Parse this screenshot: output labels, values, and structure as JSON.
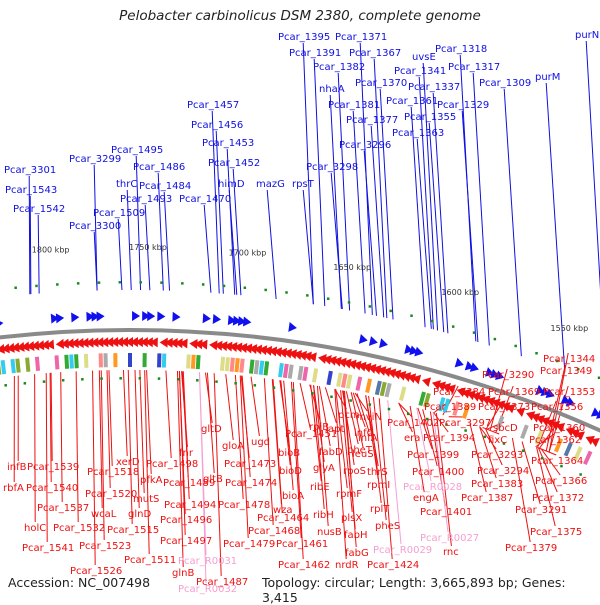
{
  "title": "Pelobacter carbinolicus DSM 2380, complete genome",
  "footer": {
    "accession": "Accession: NC_007498",
    "summary": "Topology: circular; Length: 3,665,893 bp; Genes: 3,415"
  },
  "colors": {
    "forward_label": "#1010e0",
    "reverse_label": "#ee1010",
    "rna_label": "#f4a0d0",
    "backbone": "#888888",
    "gc_tick": "#1a8a1a"
  },
  "scale_ticks": [
    "1550 kbp",
    "1600 kbp",
    "1650 kbp",
    "1700 kbp",
    "1750 kbp",
    "1800 kbp"
  ],
  "forward_genes": [
    "Pcar_1395",
    "Pcar_1371",
    "Pcar_1391",
    "Pcar_1367",
    "uvsE",
    "Pcar_1318",
    "Pcar_1382",
    "Pcar_1341",
    "Pcar_1317",
    "purN",
    "nhaA",
    "Pcar_1370",
    "Pcar_1337",
    "Pcar_1309",
    "purM",
    "Pcar_1381",
    "Pcar_1361",
    "Pcar_1329",
    "Pcar_1377",
    "Pcar_1355",
    "Pcar_1363",
    "Pcar_3296",
    "Pcar_3298",
    "Pcar_1457",
    "Pcar_1456",
    "Pcar_1453",
    "Pcar_1452",
    "himD",
    "mazG",
    "rpsT",
    "Pcar_1495",
    "Pcar_3299",
    "Pcar_1486",
    "thrC",
    "Pcar_1484",
    "Pcar_1493",
    "Pcar_1470",
    "Pcar_1509",
    "Pcar_3300",
    "Pcar_3301",
    "Pcar_1543",
    "Pcar_1542"
  ],
  "reverse_genes": [
    "Pcar_1344",
    "Pcar_1349",
    "Pcar_3290",
    "Pcar_1384",
    "Pcar_1369",
    "Pcar_1353",
    "Pcar_1389",
    "Pcar_1373",
    "Pcar_1356",
    "Pcar_1402",
    "Pcar_3297",
    "sbcD",
    "Pcar_1360",
    "era",
    "Pcar_1394",
    "fixC",
    "Pcar_1362",
    "infA",
    "Pcar_1399",
    "Pcar_3293",
    "Pcar_1364",
    "leuS",
    "Pcar_1400",
    "Pcar_3294",
    "Pcar_1366",
    "Pcar_1383",
    "engA",
    "Pcar_1387",
    "Pcar_1372",
    "Pcar_1401",
    "Pcar_3291",
    "Pcar_1375",
    "rnc",
    "Pcar_1379",
    "pcm",
    "mviN",
    "rpiB",
    "apt",
    "infC",
    "Pcar_1451",
    "pheT",
    "fabD",
    "glyA",
    "rpoS",
    "thrS",
    "rpmI",
    "ribE",
    "rpmF",
    "rplT",
    "ribH",
    "plsX",
    "pheS",
    "nusB",
    "fabH",
    "fabG",
    "nrdR",
    "Pcar_1424",
    "gloA",
    "ugd",
    "bioB",
    "Pcar_1473",
    "bioD",
    "Pcar_1474",
    "bioA",
    "wza",
    "Pcar_1478",
    "Pcar_1464",
    "Pcar_1468",
    "Pcar_1479",
    "Pcar_1461",
    "Pcar_1462",
    "gltB",
    "gltD",
    "fnr",
    "Pcar_1498",
    "Pcar_1489",
    "Pcar_1494",
    "Pcar_1496",
    "Pcar_1497",
    "glnB",
    "Pcar_1487",
    "xerD",
    "Pcar_1518",
    "pfkA",
    "Pcar_1520",
    "mutS",
    "glnD",
    "Pcar_1515",
    "Pcar_1511",
    "wcaL",
    "Pcar_1523",
    "Pcar_1526",
    "infB",
    "Pcar_1539",
    "rbfA",
    "Pcar_1540",
    "Pcar_1537",
    "holC",
    "Pcar_1532",
    "Pcar_1541"
  ],
  "rna_genes": [
    "Pcar_R0028",
    "Pcar_R0027",
    "Pcar_R0029",
    "Pcar_R0031",
    "Pcar_R0032"
  ]
}
